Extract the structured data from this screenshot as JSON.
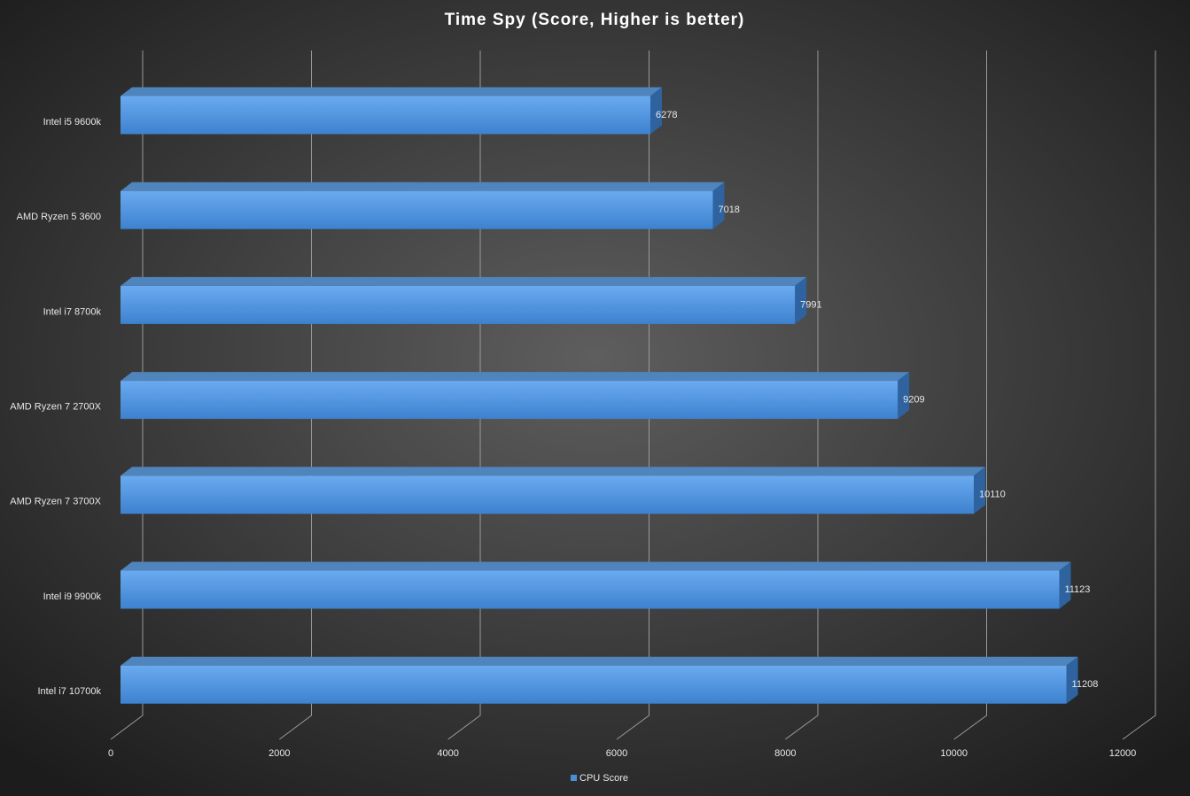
{
  "chart_data": {
    "type": "bar",
    "orientation": "horizontal",
    "title": "Time Spy (Score, Higher is better)",
    "categories": [
      "Intel i5 9600k",
      "AMD Ryzen 5 3600",
      "Intel i7 8700k",
      "AMD Ryzen 7 2700X",
      "AMD Ryzen 7 3700X",
      "Intel i9 9900k",
      "Intel i7 10700k"
    ],
    "series": [
      {
        "name": "CPU Score",
        "color": "#4a8fd6",
        "values": [
          6278,
          7018,
          7991,
          9209,
          10110,
          11123,
          11208
        ]
      }
    ],
    "xlim": [
      0,
      12000
    ],
    "xticks": [
      0,
      2000,
      4000,
      6000,
      8000,
      10000,
      12000
    ],
    "grid": true,
    "legend": "bottom"
  }
}
